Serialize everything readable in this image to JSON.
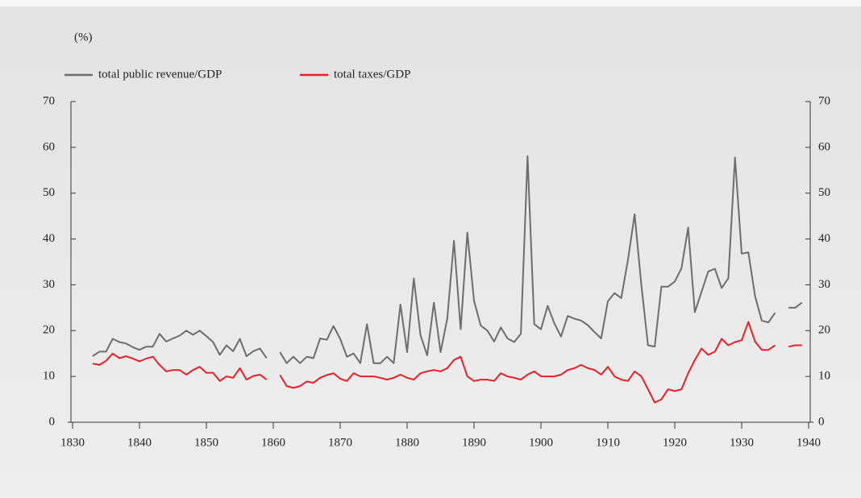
{
  "chart_data": {
    "type": "line",
    "y_label": "(%)",
    "x": [
      1833,
      1834,
      1835,
      1836,
      1837,
      1838,
      1839,
      1840,
      1841,
      1842,
      1843,
      1844,
      1845,
      1846,
      1847,
      1848,
      1849,
      1850,
      1851,
      1852,
      1853,
      1854,
      1855,
      1856,
      1857,
      1858,
      1859,
      1860,
      1861,
      1862,
      1863,
      1864,
      1865,
      1866,
      1867,
      1868,
      1869,
      1870,
      1871,
      1872,
      1873,
      1874,
      1875,
      1876,
      1877,
      1878,
      1879,
      1880,
      1881,
      1882,
      1883,
      1884,
      1885,
      1886,
      1887,
      1888,
      1889,
      1890,
      1891,
      1892,
      1893,
      1894,
      1895,
      1896,
      1897,
      1898,
      1899,
      1900,
      1901,
      1902,
      1903,
      1904,
      1905,
      1906,
      1907,
      1908,
      1909,
      1910,
      1911,
      1912,
      1913,
      1914,
      1915,
      1916,
      1917,
      1918,
      1919,
      1920,
      1921,
      1922,
      1923,
      1924,
      1925,
      1926,
      1927,
      1928,
      1929,
      1930,
      1931,
      1932,
      1933,
      1934,
      1935,
      1936,
      1937,
      1938,
      1939
    ],
    "series": [
      {
        "name": "total public revenue/GDP",
        "color": "#6d6d6d",
        "values": [
          14.4,
          15.4,
          15.4,
          18.2,
          17.5,
          17.2,
          16.4,
          15.8,
          16.5,
          16.5,
          19.3,
          17.6,
          18.3,
          18.9,
          20.0,
          19.1,
          20.0,
          18.8,
          17.5,
          14.7,
          16.8,
          15.5,
          18.2,
          14.4,
          15.5,
          16.1,
          14.0,
          null,
          15.3,
          12.9,
          14.3,
          12.9,
          14.3,
          14.0,
          18.3,
          18.0,
          21.0,
          18.2,
          14.3,
          15.0,
          12.9,
          21.4,
          12.9,
          12.9,
          14.3,
          12.9,
          25.7,
          15.3,
          31.4,
          19.0,
          14.6,
          26.1,
          15.3,
          22.6,
          39.6,
          20.3,
          41.4,
          26.5,
          21.1,
          20.0,
          17.6,
          20.7,
          18.3,
          17.5,
          19.3,
          58.1,
          21.4,
          20.3,
          25.4,
          21.6,
          18.7,
          23.2,
          22.6,
          22.2,
          21.2,
          19.7,
          18.3,
          26.4,
          28.2,
          27.1,
          35.4,
          45.4,
          30.0,
          16.8,
          16.5,
          29.6,
          29.6,
          30.7,
          33.6,
          42.5,
          24.0,
          28.5,
          32.9,
          33.5,
          29.3,
          31.4,
          57.8,
          36.8,
          37.1,
          27.5,
          22.2,
          21.8,
          23.9,
          null,
          25.0,
          25.0,
          26.1
        ]
      },
      {
        "name": "total taxes/GDP",
        "color": "#e8202a",
        "values": [
          12.8,
          12.5,
          13.4,
          15.0,
          14.0,
          14.4,
          13.9,
          13.3,
          13.9,
          14.3,
          12.5,
          11.1,
          11.4,
          11.4,
          10.4,
          11.4,
          12.1,
          10.8,
          10.8,
          9.0,
          10.0,
          9.7,
          11.8,
          9.3,
          10.1,
          10.4,
          9.3,
          null,
          10.3,
          7.9,
          7.5,
          7.9,
          8.9,
          8.6,
          9.7,
          10.3,
          10.7,
          9.5,
          9.0,
          10.7,
          10.0,
          10.0,
          10.0,
          9.7,
          9.3,
          9.7,
          10.4,
          9.7,
          9.3,
          10.7,
          11.1,
          11.4,
          11.1,
          11.8,
          13.6,
          14.3,
          10.0,
          9.0,
          9.3,
          9.3,
          9.0,
          10.7,
          10.0,
          9.7,
          9.3,
          10.4,
          11.1,
          10.0,
          10.0,
          10.0,
          10.4,
          11.4,
          11.8,
          12.5,
          11.8,
          11.4,
          10.4,
          12.1,
          10.0,
          9.3,
          9.0,
          11.1,
          10.0,
          7.2,
          4.3,
          5.0,
          7.2,
          6.8,
          7.2,
          10.7,
          13.6,
          16.1,
          14.7,
          15.4,
          18.2,
          16.8,
          17.5,
          17.9,
          21.9,
          17.6,
          15.8,
          15.8,
          16.8,
          null,
          16.5,
          16.8,
          16.8
        ]
      }
    ],
    "xlim": [
      1830,
      1940
    ],
    "xticks": [
      1830,
      1840,
      1850,
      1860,
      1870,
      1880,
      1890,
      1900,
      1910,
      1920,
      1930,
      1940
    ],
    "ylim": [
      0,
      70
    ],
    "yticks": [
      0,
      10,
      20,
      30,
      40,
      50,
      60,
      70
    ],
    "right_axis": true
  }
}
